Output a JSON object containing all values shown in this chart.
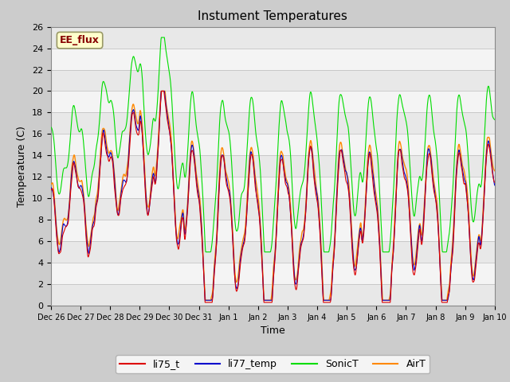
{
  "title": "Instument Temperatures",
  "xlabel": "Time",
  "ylabel": "Temperature (C)",
  "ylim": [
    0,
    26
  ],
  "xlim": [
    0,
    360
  ],
  "x_tick_labels": [
    "Dec 26",
    "Dec 27",
    "Dec 28",
    "Dec 29",
    "Dec 30",
    "Dec 31",
    "Jan 1",
    "Jan 2",
    "Jan 3",
    "Jan 4",
    "Jan 5",
    "Jan 6",
    "Jan 7",
    "Jan 8",
    "Jan 9",
    "Jan 10"
  ],
  "x_tick_positions": [
    0,
    24,
    48,
    72,
    96,
    120,
    144,
    168,
    192,
    216,
    240,
    264,
    288,
    312,
    336,
    360
  ],
  "colors": {
    "li75_t": "#dd0000",
    "li77_temp": "#0000cc",
    "SonicT": "#00dd00",
    "AirT": "#ff8800"
  },
  "band_colors": [
    "#e8e8e8",
    "#f4f4f4"
  ],
  "fig_bg": "#cccccc",
  "ee_flux_bg": "#ffffcc",
  "ee_flux_border": "#999966",
  "ee_flux_text": "#880000",
  "annotation": "EE_flux",
  "title_fontsize": 11,
  "axis_fontsize": 9,
  "tick_fontsize": 8
}
